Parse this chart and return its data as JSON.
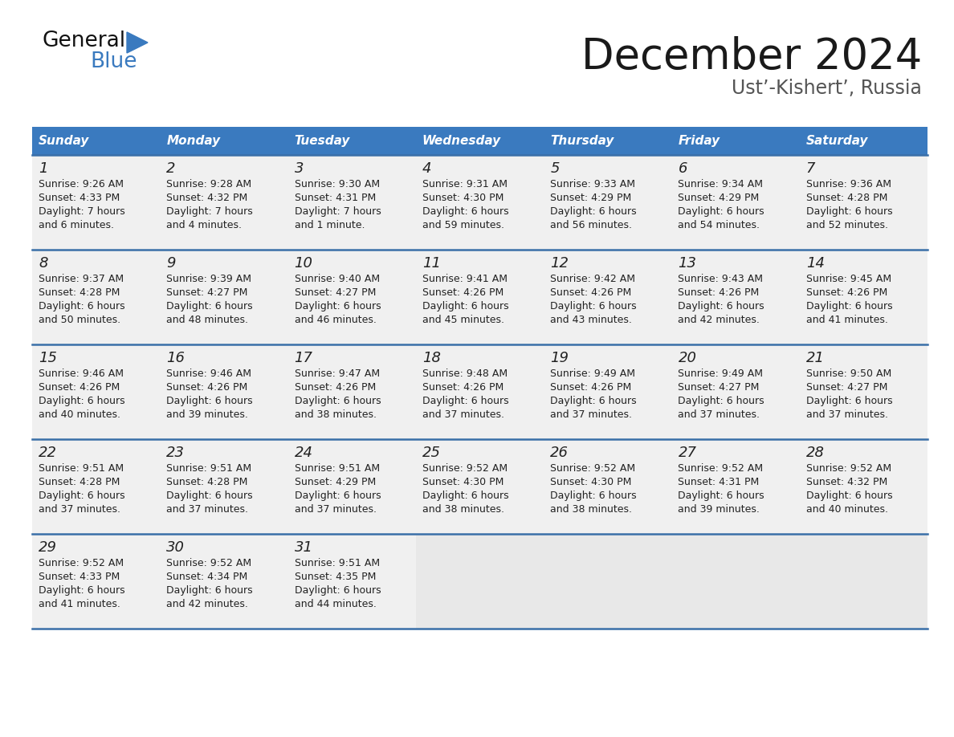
{
  "title": "December 2024",
  "subtitle": "Ust’-Kishert’, Russia",
  "header_color": "#3a7abf",
  "header_text_color": "#ffffff",
  "cell_bg_color": "#f0f0f0",
  "empty_cell_bg": "#e8e8e8",
  "day_names": [
    "Sunday",
    "Monday",
    "Tuesday",
    "Wednesday",
    "Thursday",
    "Friday",
    "Saturday"
  ],
  "weeks": [
    [
      {
        "day": 1,
        "sunrise": "9:26 AM",
        "sunset": "4:33 PM",
        "daylight": "7 hours",
        "daylight2": "and 6 minutes."
      },
      {
        "day": 2,
        "sunrise": "9:28 AM",
        "sunset": "4:32 PM",
        "daylight": "7 hours",
        "daylight2": "and 4 minutes."
      },
      {
        "day": 3,
        "sunrise": "9:30 AM",
        "sunset": "4:31 PM",
        "daylight": "7 hours",
        "daylight2": "and 1 minute."
      },
      {
        "day": 4,
        "sunrise": "9:31 AM",
        "sunset": "4:30 PM",
        "daylight": "6 hours",
        "daylight2": "and 59 minutes."
      },
      {
        "day": 5,
        "sunrise": "9:33 AM",
        "sunset": "4:29 PM",
        "daylight": "6 hours",
        "daylight2": "and 56 minutes."
      },
      {
        "day": 6,
        "sunrise": "9:34 AM",
        "sunset": "4:29 PM",
        "daylight": "6 hours",
        "daylight2": "and 54 minutes."
      },
      {
        "day": 7,
        "sunrise": "9:36 AM",
        "sunset": "4:28 PM",
        "daylight": "6 hours",
        "daylight2": "and 52 minutes."
      }
    ],
    [
      {
        "day": 8,
        "sunrise": "9:37 AM",
        "sunset": "4:28 PM",
        "daylight": "6 hours",
        "daylight2": "and 50 minutes."
      },
      {
        "day": 9,
        "sunrise": "9:39 AM",
        "sunset": "4:27 PM",
        "daylight": "6 hours",
        "daylight2": "and 48 minutes."
      },
      {
        "day": 10,
        "sunrise": "9:40 AM",
        "sunset": "4:27 PM",
        "daylight": "6 hours",
        "daylight2": "and 46 minutes."
      },
      {
        "day": 11,
        "sunrise": "9:41 AM",
        "sunset": "4:26 PM",
        "daylight": "6 hours",
        "daylight2": "and 45 minutes."
      },
      {
        "day": 12,
        "sunrise": "9:42 AM",
        "sunset": "4:26 PM",
        "daylight": "6 hours",
        "daylight2": "and 43 minutes."
      },
      {
        "day": 13,
        "sunrise": "9:43 AM",
        "sunset": "4:26 PM",
        "daylight": "6 hours",
        "daylight2": "and 42 minutes."
      },
      {
        "day": 14,
        "sunrise": "9:45 AM",
        "sunset": "4:26 PM",
        "daylight": "6 hours",
        "daylight2": "and 41 minutes."
      }
    ],
    [
      {
        "day": 15,
        "sunrise": "9:46 AM",
        "sunset": "4:26 PM",
        "daylight": "6 hours",
        "daylight2": "and 40 minutes."
      },
      {
        "day": 16,
        "sunrise": "9:46 AM",
        "sunset": "4:26 PM",
        "daylight": "6 hours",
        "daylight2": "and 39 minutes."
      },
      {
        "day": 17,
        "sunrise": "9:47 AM",
        "sunset": "4:26 PM",
        "daylight": "6 hours",
        "daylight2": "and 38 minutes."
      },
      {
        "day": 18,
        "sunrise": "9:48 AM",
        "sunset": "4:26 PM",
        "daylight": "6 hours",
        "daylight2": "and 37 minutes."
      },
      {
        "day": 19,
        "sunrise": "9:49 AM",
        "sunset": "4:26 PM",
        "daylight": "6 hours",
        "daylight2": "and 37 minutes."
      },
      {
        "day": 20,
        "sunrise": "9:49 AM",
        "sunset": "4:27 PM",
        "daylight": "6 hours",
        "daylight2": "and 37 minutes."
      },
      {
        "day": 21,
        "sunrise": "9:50 AM",
        "sunset": "4:27 PM",
        "daylight": "6 hours",
        "daylight2": "and 37 minutes."
      }
    ],
    [
      {
        "day": 22,
        "sunrise": "9:51 AM",
        "sunset": "4:28 PM",
        "daylight": "6 hours",
        "daylight2": "and 37 minutes."
      },
      {
        "day": 23,
        "sunrise": "9:51 AM",
        "sunset": "4:28 PM",
        "daylight": "6 hours",
        "daylight2": "and 37 minutes."
      },
      {
        "day": 24,
        "sunrise": "9:51 AM",
        "sunset": "4:29 PM",
        "daylight": "6 hours",
        "daylight2": "and 37 minutes."
      },
      {
        "day": 25,
        "sunrise": "9:52 AM",
        "sunset": "4:30 PM",
        "daylight": "6 hours",
        "daylight2": "and 38 minutes."
      },
      {
        "day": 26,
        "sunrise": "9:52 AM",
        "sunset": "4:30 PM",
        "daylight": "6 hours",
        "daylight2": "and 38 minutes."
      },
      {
        "day": 27,
        "sunrise": "9:52 AM",
        "sunset": "4:31 PM",
        "daylight": "6 hours",
        "daylight2": "and 39 minutes."
      },
      {
        "day": 28,
        "sunrise": "9:52 AM",
        "sunset": "4:32 PM",
        "daylight": "6 hours",
        "daylight2": "and 40 minutes."
      }
    ],
    [
      {
        "day": 29,
        "sunrise": "9:52 AM",
        "sunset": "4:33 PM",
        "daylight": "6 hours",
        "daylight2": "and 41 minutes."
      },
      {
        "day": 30,
        "sunrise": "9:52 AM",
        "sunset": "4:34 PM",
        "daylight": "6 hours",
        "daylight2": "and 42 minutes."
      },
      {
        "day": 31,
        "sunrise": "9:51 AM",
        "sunset": "4:35 PM",
        "daylight": "6 hours",
        "daylight2": "and 44 minutes."
      },
      null,
      null,
      null,
      null
    ]
  ],
  "divider_color": "#3a6fa8",
  "cell_text_color": "#222222",
  "title_color": "#1a1a1a",
  "subtitle_color": "#555555",
  "logo_color1": "#111111",
  "logo_color2": "#3a7abf",
  "logo_triangle_color": "#3a7abf",
  "figsize": [
    11.88,
    9.18
  ],
  "dpi": 100
}
